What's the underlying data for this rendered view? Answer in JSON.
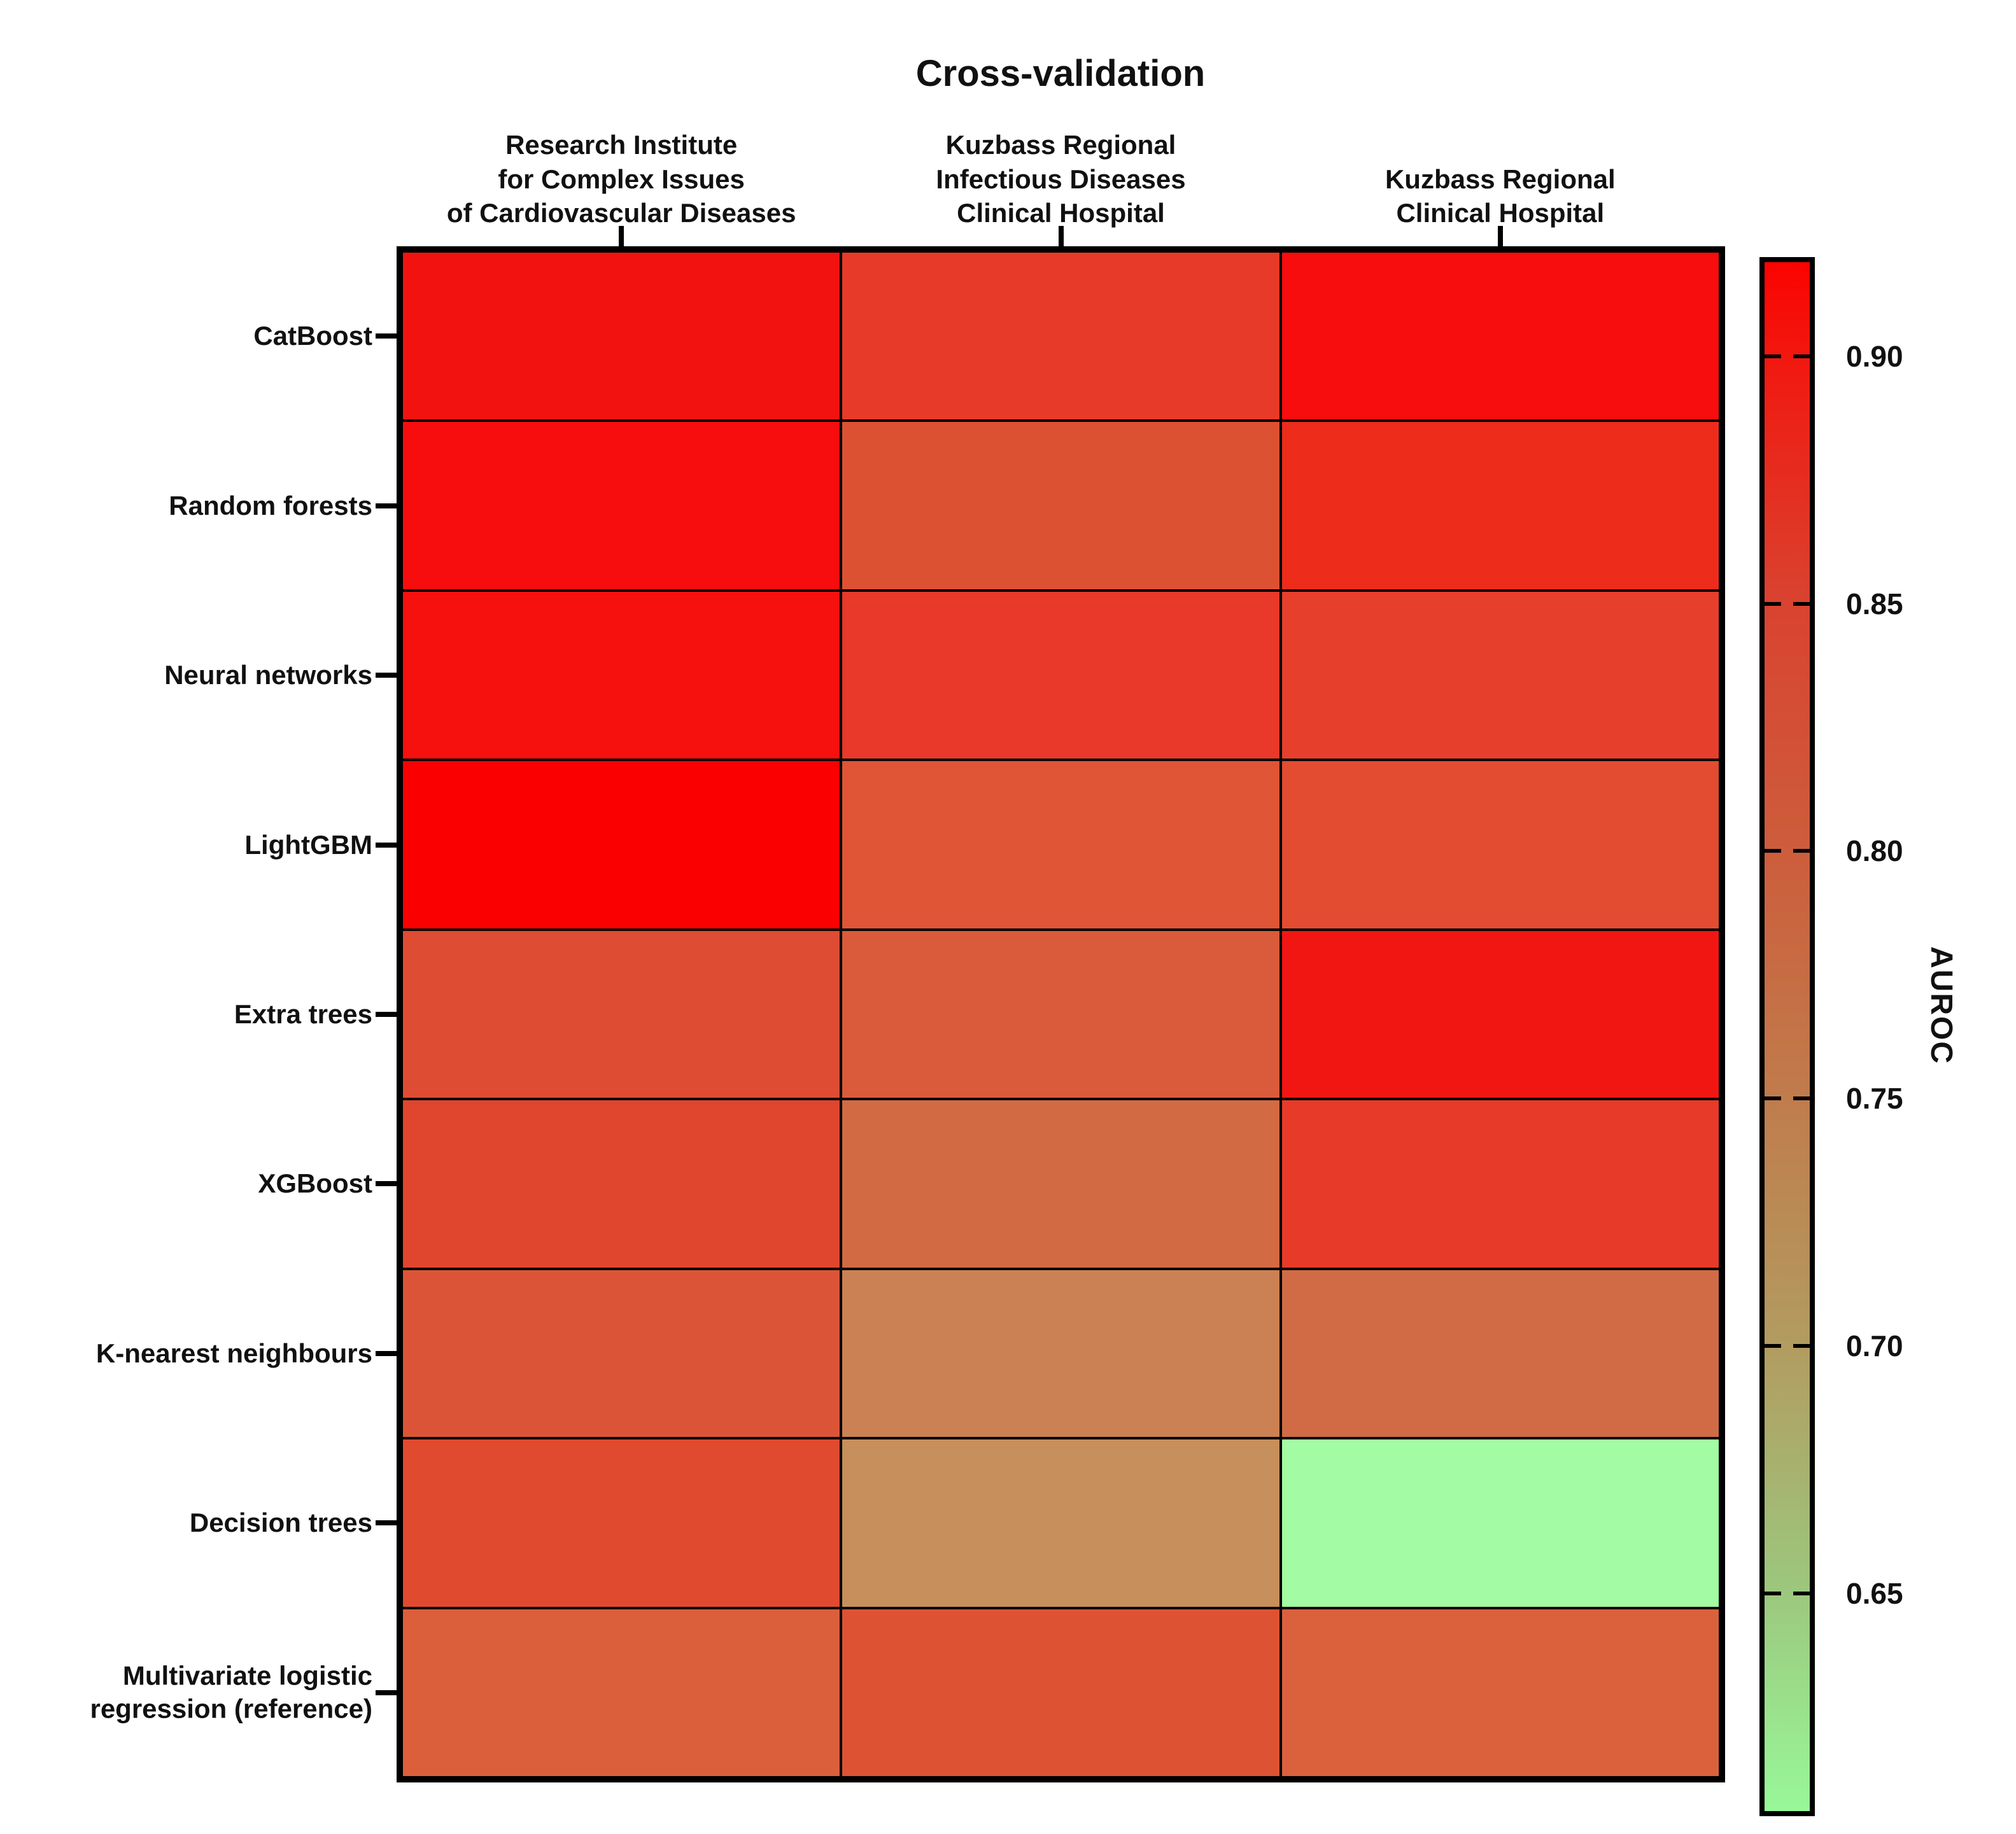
{
  "chart_data": {
    "type": "heatmap",
    "title": "Cross-validation",
    "columns": [
      "Research Institute\nfor Complex Issues\nof Cardiovascular Diseases",
      "Kuzbass Regional\nInfectious Diseases\nClinical Hospital",
      "Kuzbass Regional\nClinical Hospital"
    ],
    "rows": [
      "CatBoost",
      "Random forests",
      "Neural networks",
      "LightGBM",
      "Extra trees",
      "XGBoost",
      "K-nearest neighbours",
      "Decision trees",
      "Multivariate logistic\nregression (reference)"
    ],
    "values": [
      [
        0.905,
        0.87,
        0.91
      ],
      [
        0.91,
        0.83,
        0.885
      ],
      [
        0.905,
        0.87,
        0.865
      ],
      [
        0.92,
        0.835,
        0.845
      ],
      [
        0.845,
        0.825,
        0.905
      ],
      [
        0.85,
        0.795,
        0.87
      ],
      [
        0.84,
        0.765,
        0.8
      ],
      [
        0.855,
        0.735,
        0.61
      ],
      [
        0.835,
        0.845,
        0.825
      ]
    ],
    "cell_colors": [
      [
        "#f21310",
        "#e83a28",
        "#f70d0d"
      ],
      [
        "#f70d0d",
        "#dd5133",
        "#ee2c1c"
      ],
      [
        "#f6100e",
        "#e8392a",
        "#e63f2b"
      ],
      [
        "#fa0000",
        "#df5536",
        "#e34c30"
      ],
      [
        "#dd4c33",
        "#d95b3b",
        "#f21613"
      ],
      [
        "#e0452e",
        "#d26a44",
        "#e83a28"
      ],
      [
        "#dc5438",
        "#cb8153",
        "#d16b45"
      ],
      [
        "#e04a2f",
        "#c68f5b",
        "#a3fca3"
      ],
      [
        "#dc5f3c",
        "#de5234",
        "#db613d"
      ]
    ],
    "ylabel": "",
    "xlabel": "",
    "grid_border_color": "#000000",
    "background": "#ffffff",
    "legend_position": "right",
    "colorbar": {
      "label": "AUROC",
      "tick_labels": [
        "0.90",
        "0.85",
        "0.80",
        "0.75",
        "0.70",
        "0.65"
      ],
      "tick_values": [
        0.9,
        0.85,
        0.8,
        0.75,
        0.7,
        0.65
      ],
      "range_top": 0.92,
      "range_bottom": 0.61,
      "gradient_stops": [
        {
          "pos": 0,
          "color": "#fb0301"
        },
        {
          "pos": 6,
          "color": "#f2170f"
        },
        {
          "pos": 22,
          "color": "#d94330"
        },
        {
          "pos": 38,
          "color": "#cd5d3c"
        },
        {
          "pos": 54,
          "color": "#c07c4c"
        },
        {
          "pos": 70,
          "color": "#b29c60"
        },
        {
          "pos": 86,
          "color": "#9cc87e"
        },
        {
          "pos": 100,
          "color": "#98f898"
        }
      ]
    }
  }
}
